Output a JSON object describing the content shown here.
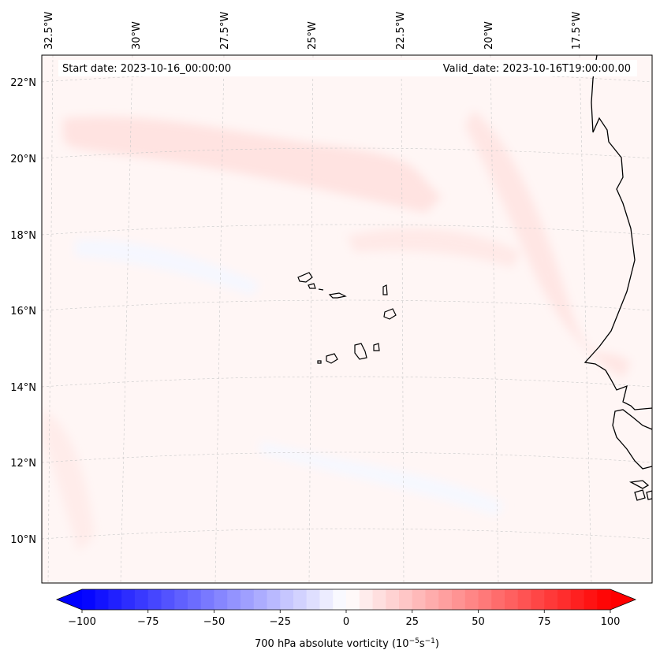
{
  "header": {
    "start_date": "Start date: 2023-10-16_00:00:00",
    "valid_date": "Valid_date: 2023-10-16T19:00:00.00"
  },
  "map": {
    "variable": "700 hPa absolute vorticity",
    "longitude_labels": [
      "32.5°W",
      "30°W",
      "27.5°W",
      "25°W",
      "22.5°W",
      "20°W",
      "17.5°W"
    ],
    "latitude_labels": [
      "22°N",
      "20°N",
      "18°N",
      "16°N",
      "14°N",
      "12°N",
      "10°N"
    ],
    "features": [
      "Cape Verde islands",
      "West African coastline"
    ]
  },
  "colorbar": {
    "label_prefix": "700 hPa absolute vorticity (10",
    "label_exp1": "−5",
    "label_mid": "s",
    "label_exp2": "−1",
    "label_suffix": ")",
    "tick_labels": [
      "−100",
      "−75",
      "−50",
      "−25",
      "0",
      "25",
      "50",
      "75",
      "100"
    ],
    "min": -100,
    "max": 100,
    "step": 5,
    "low_color": "#0000ff",
    "mid_color": "#ffffff",
    "high_color": "#ff0000"
  }
}
